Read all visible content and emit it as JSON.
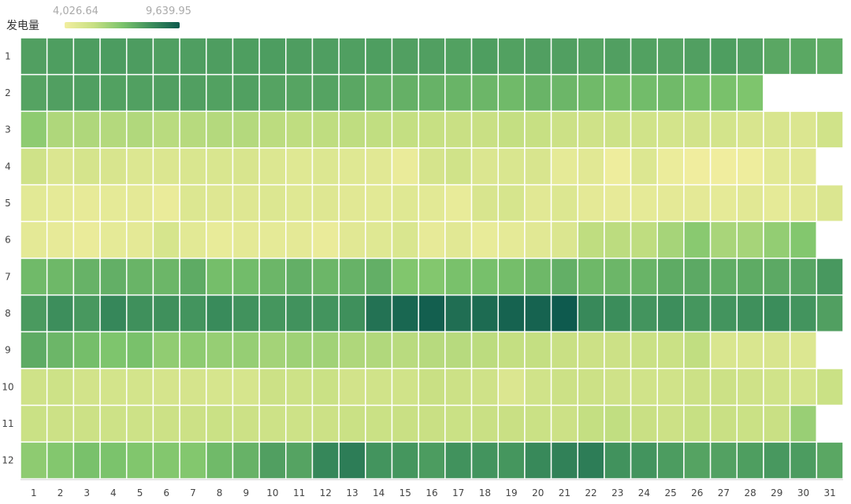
{
  "legend": {
    "label": "发电量",
    "min_label": "4,026.64",
    "max_label": "9,639.95",
    "min_color": "#f2eea0",
    "max_color": "#0e5a4e"
  },
  "colors": {
    "empty": "#ffffff",
    "grid_line": "#ffffff"
  },
  "chart_data": {
    "type": "heatmap",
    "value_label": "发电量",
    "min": 4026.64,
    "max": 9639.95,
    "x_categories": [
      "1",
      "2",
      "3",
      "4",
      "5",
      "6",
      "7",
      "8",
      "9",
      "10",
      "11",
      "12",
      "13",
      "14",
      "15",
      "16",
      "17",
      "18",
      "19",
      "20",
      "21",
      "22",
      "23",
      "24",
      "25",
      "26",
      "27",
      "28",
      "29",
      "30",
      "31"
    ],
    "y_categories": [
      "1",
      "2",
      "3",
      "4",
      "5",
      "6",
      "7",
      "8",
      "9",
      "10",
      "11",
      "12"
    ],
    "values": [
      [
        7800,
        7850,
        7870,
        7900,
        7880,
        7820,
        7840,
        7860,
        7850,
        7870,
        7860,
        7830,
        7810,
        7850,
        7800,
        7800,
        7760,
        7850,
        7770,
        7800,
        7800,
        7700,
        7800,
        7770,
        7700,
        7800,
        7850,
        7750,
        7600,
        7580,
        7480
      ],
      [
        7700,
        7800,
        7820,
        7770,
        7790,
        7800,
        7800,
        7770,
        7780,
        7700,
        7680,
        7700,
        7600,
        7400,
        7350,
        7300,
        7250,
        7200,
        7100,
        7250,
        7200,
        7100,
        7000,
        7050,
        7100,
        6950,
        6900,
        6800,
        null,
        null,
        null
      ],
      [
        6500,
        5900,
        5900,
        5800,
        5850,
        5700,
        5750,
        5800,
        5800,
        5650,
        5600,
        5600,
        5600,
        5550,
        5500,
        5450,
        5400,
        5400,
        5500,
        5450,
        5300,
        5200,
        5250,
        5150,
        5050,
        5100,
        5050,
        4900,
        4900,
        4800,
        5150
      ],
      [
        5200,
        4800,
        5000,
        4900,
        4750,
        4800,
        4850,
        4850,
        4900,
        4750,
        4650,
        4750,
        4650,
        4600,
        4300,
        5000,
        5150,
        4800,
        4850,
        4900,
        4450,
        4600,
        4150,
        4750,
        4250,
        4100,
        4100,
        4150,
        4550,
        4600,
        null
      ],
      [
        4550,
        4450,
        4400,
        4450,
        4500,
        4300,
        4750,
        4700,
        4700,
        4750,
        4650,
        4700,
        4600,
        4550,
        4650,
        4550,
        4350,
        4900,
        4950,
        4600,
        4750,
        4500,
        4400,
        4450,
        4500,
        4500,
        4450,
        4600,
        4450,
        4600,
        4800
      ],
      [
        4500,
        4400,
        4300,
        4450,
        4500,
        4950,
        4550,
        4350,
        4500,
        4450,
        4500,
        4300,
        4600,
        4650,
        4850,
        4400,
        4600,
        4350,
        4450,
        4600,
        4800,
        5600,
        5650,
        5600,
        6050,
        6600,
        6000,
        6050,
        6400,
        6700,
        null
      ],
      [
        7100,
        7150,
        7300,
        7400,
        7250,
        7200,
        7500,
        7000,
        7050,
        7200,
        7400,
        7200,
        7300,
        7400,
        6750,
        6700,
        6900,
        6950,
        7000,
        7150,
        7400,
        7150,
        7200,
        7250,
        7500,
        7550,
        7450,
        7500,
        7550,
        7650,
        8000
      ],
      [
        7950,
        8250,
        8000,
        8450,
        8200,
        8200,
        8100,
        8350,
        8150,
        8050,
        8150,
        8100,
        8200,
        9000,
        9300,
        9500,
        9100,
        9200,
        9400,
        9400,
        9640,
        8400,
        8300,
        8100,
        8250,
        8050,
        8100,
        8200,
        8300,
        8100,
        7800
      ],
      [
        7500,
        7200,
        7000,
        6800,
        6900,
        6450,
        6500,
        6350,
        6350,
        6100,
        6200,
        6150,
        5900,
        5850,
        5700,
        5750,
        5750,
        5650,
        5500,
        5500,
        5400,
        5300,
        5300,
        5350,
        5350,
        5550,
        4850,
        4850,
        4900,
        4750,
        null
      ],
      [
        5200,
        5250,
        5100,
        5050,
        5050,
        5000,
        5000,
        4950,
        4950,
        5300,
        5250,
        5350,
        5100,
        5150,
        5150,
        5400,
        5300,
        5200,
        4800,
        5150,
        5300,
        5300,
        5200,
        5150,
        5150,
        5300,
        5300,
        5200,
        5150,
        5050,
        5350
      ],
      [
        5350,
        5300,
        5300,
        5250,
        5250,
        5300,
        5300,
        5350,
        5300,
        5250,
        5250,
        5300,
        5350,
        5350,
        5400,
        5400,
        5350,
        5400,
        5400,
        5350,
        5300,
        5500,
        5550,
        5400,
        5300,
        5450,
        5400,
        5350,
        5400,
        6300,
        null
      ],
      [
        6500,
        6700,
        6900,
        6850,
        6750,
        6700,
        6700,
        7100,
        7300,
        7800,
        7700,
        8450,
        8700,
        8100,
        8050,
        7900,
        8150,
        8100,
        8050,
        8400,
        8600,
        8700,
        8150,
        8100,
        7900,
        7700,
        7750,
        7850,
        8000,
        7900,
        7600
      ]
    ]
  }
}
